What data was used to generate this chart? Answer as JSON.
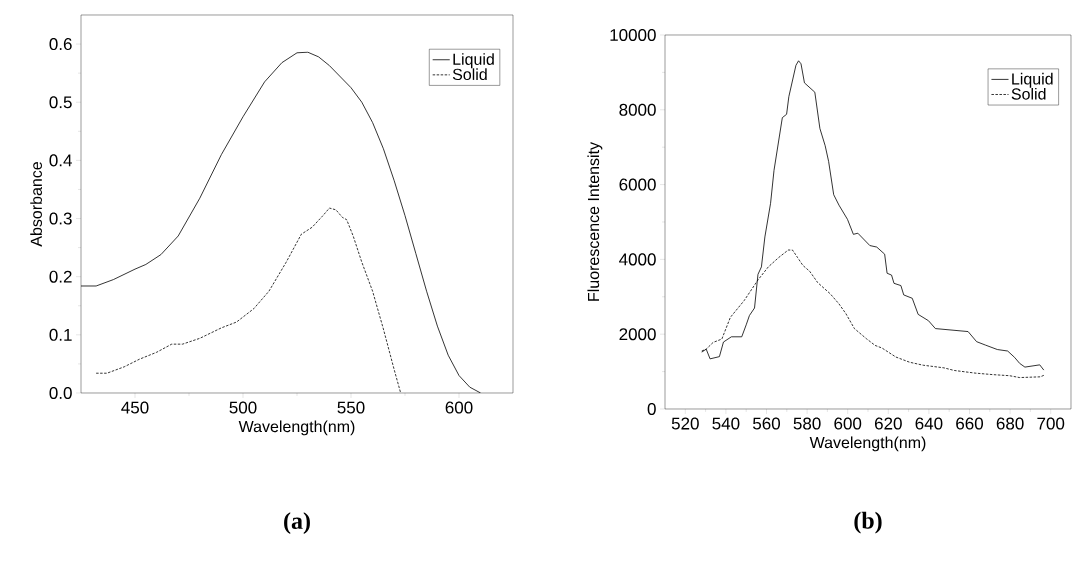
{
  "chart_data": [
    {
      "type": "line",
      "title": "(a)",
      "xlabel": "Wavelength(nm)",
      "ylabel": "Absorbance",
      "xlim": [
        425,
        625
      ],
      "ylim": [
        0,
        0.65
      ],
      "xticks": [
        450,
        500,
        550,
        600
      ],
      "yticks": [
        {
          "value": 0,
          "label": "0.0"
        },
        0.1,
        0.2,
        0.3,
        0.4,
        0.5,
        0.6
      ],
      "legend": "top right",
      "series": [
        {
          "name": "Liquid",
          "color": "#000000",
          "line_style": "solid",
          "x": [
            425,
            432,
            440,
            450,
            455,
            462,
            470,
            480,
            490,
            500,
            510,
            518,
            525,
            530,
            535,
            540,
            550,
            555,
            560,
            565,
            570,
            575,
            580,
            585,
            590,
            595,
            600,
            605,
            610
          ],
          "values": [
            0.184,
            0.184,
            0.195,
            0.213,
            0.221,
            0.238,
            0.27,
            0.335,
            0.41,
            0.475,
            0.535,
            0.568,
            0.585,
            0.586,
            0.578,
            0.563,
            0.525,
            0.5,
            0.465,
            0.42,
            0.365,
            0.305,
            0.24,
            0.175,
            0.115,
            0.065,
            0.03,
            0.01,
            0.0
          ]
        },
        {
          "name": "Solid",
          "color": "#000000",
          "line_style": "dashed",
          "x": [
            432,
            437,
            445,
            452,
            460,
            467,
            472,
            480,
            490,
            497,
            505,
            512,
            520,
            527,
            532,
            537,
            540,
            543,
            546,
            548,
            551,
            555,
            560,
            565,
            570,
            573
          ],
          "values": [
            0.034,
            0.034,
            0.045,
            0.058,
            0.07,
            0.084,
            0.084,
            0.094,
            0.112,
            0.122,
            0.145,
            0.175,
            0.225,
            0.273,
            0.285,
            0.305,
            0.318,
            0.315,
            0.302,
            0.298,
            0.27,
            0.225,
            0.175,
            0.11,
            0.04,
            0.0
          ]
        }
      ]
    },
    {
      "type": "line",
      "title": "(b)",
      "xlabel": "Wavelength(nm)",
      "ylabel": "Fluorescence Intensity",
      "xlim": [
        510,
        710
      ],
      "ylim": [
        0,
        10000
      ],
      "xticks": [
        520,
        540,
        560,
        580,
        600,
        620,
        640,
        660,
        680,
        700
      ],
      "yticks": [
        0,
        2000,
        4000,
        6000,
        8000,
        10000
      ],
      "legend": "top right",
      "series": [
        {
          "name": "Liquid",
          "color": "#000000",
          "line_style": "solid",
          "x": [
            528.1,
            530.3,
            532.2,
            536.8,
            538.8,
            542.7,
            547.8,
            550,
            551.6,
            554.1,
            555.8,
            557.5,
            559.2,
            562,
            563.7,
            567.8,
            569.9,
            571,
            574.5,
            575.8,
            577,
            578.7,
            583.8,
            586.3,
            588.9,
            590.6,
            593.1,
            595.7,
            599.9,
            602.8,
            605,
            610.9,
            614.3,
            618.2,
            619.4,
            621.6,
            622.8,
            626.2,
            627.6,
            631.8,
            634.7,
            639.8,
            643.2,
            659.3,
            663.5,
            667.8,
            673.7,
            678.8,
            682.2,
            684.7,
            687.3,
            694.6,
            696.6
          ],
          "values": [
            1520,
            1600,
            1340,
            1400,
            1790,
            1930,
            1930,
            2250,
            2500,
            2700,
            3600,
            3800,
            4600,
            5500,
            6380,
            7790,
            7880,
            8350,
            9190,
            9310,
            9230,
            8720,
            8470,
            7500,
            7040,
            6620,
            5730,
            5450,
            5070,
            4670,
            4700,
            4370,
            4330,
            4140,
            3630,
            3580,
            3360,
            3300,
            3050,
            2960,
            2530,
            2360,
            2150,
            2070,
            1800,
            1710,
            1590,
            1550,
            1380,
            1220,
            1120,
            1180,
            1040
          ]
        },
        {
          "name": "Solid",
          "color": "#000000",
          "line_style": "dashed",
          "x": [
            528.1,
            530.3,
            533.7,
            538,
            542.2,
            549,
            555.8,
            560.9,
            566,
            570.7,
            572.8,
            575.3,
            577.9,
            581.3,
            585.2,
            591.4,
            595.7,
            599.1,
            603.3,
            609.2,
            613.5,
            616.9,
            623.7,
            630.5,
            637.2,
            647.4,
            652.5,
            662.7,
            671.2,
            679.7,
            684.7,
            694.9,
            696.6
          ],
          "values": [
            1550,
            1600,
            1780,
            1870,
            2450,
            2900,
            3450,
            3800,
            4050,
            4250,
            4250,
            4050,
            3840,
            3680,
            3380,
            3080,
            2810,
            2550,
            2150,
            1880,
            1700,
            1630,
            1390,
            1250,
            1170,
            1100,
            1030,
            960,
            920,
            890,
            840,
            860,
            900
          ]
        }
      ]
    }
  ]
}
